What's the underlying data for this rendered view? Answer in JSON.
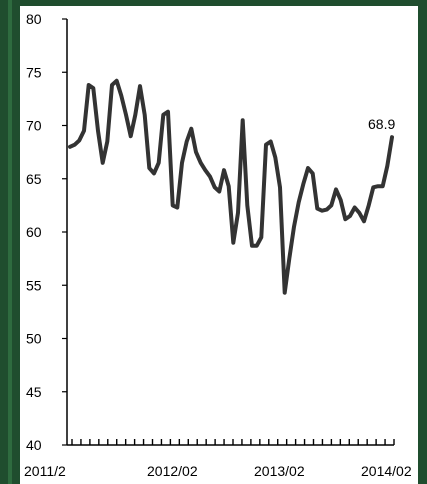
{
  "chart_data": {
    "type": "line",
    "title": "",
    "xlabel": "",
    "ylabel": "",
    "ylim": [
      40,
      80
    ],
    "y_ticks": [
      "80",
      "75",
      "70",
      "65",
      "60",
      "55",
      "50",
      "45",
      "40"
    ],
    "x_tick_labels": [
      "2011/2",
      "2012/02",
      "2013/02",
      "2014/02"
    ],
    "end_label": "68.9",
    "grid": false,
    "legend": "none",
    "line_color": "#333333",
    "series": [
      {
        "values": [
          68.0,
          68.2,
          68.6,
          69.5,
          73.8,
          73.5,
          69.5,
          66.5,
          68.5,
          73.8,
          74.2,
          72.8,
          71.0,
          69.0,
          71.0,
          73.7,
          71.0,
          66.0,
          65.5,
          66.5,
          71.0,
          71.3,
          62.5,
          62.3,
          66.5,
          68.5,
          69.7,
          67.5,
          66.5,
          65.8,
          65.2,
          64.2,
          63.8,
          65.8,
          64.3,
          59.0,
          61.8,
          70.5,
          62.5,
          58.7,
          58.7,
          59.5,
          68.2,
          68.5,
          67.0,
          64.2,
          54.3,
          57.5,
          60.5,
          62.8,
          64.5,
          66.0,
          65.5,
          62.2,
          62.0,
          62.1,
          62.5,
          64.0,
          63.0,
          61.2,
          61.5,
          62.3,
          61.8,
          61.0,
          62.5,
          64.2,
          64.3,
          64.3,
          66.2,
          68.9
        ]
      }
    ]
  }
}
